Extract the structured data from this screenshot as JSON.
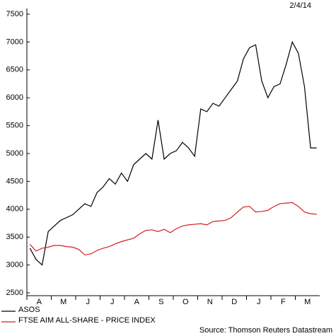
{
  "chart_data": {
    "type": "line",
    "date": "2/4/14",
    "source": "Source: Thomson Reuters Datastream",
    "categories": [
      null,
      "A",
      null,
      null,
      null,
      "M",
      null,
      null,
      null,
      "J",
      null,
      null,
      null,
      "J",
      null,
      null,
      null,
      "A",
      null,
      null,
      null,
      "S",
      null,
      null,
      null,
      "O",
      null,
      null,
      null,
      "N",
      null,
      null,
      null,
      "D",
      null,
      null,
      null,
      "J",
      null,
      null,
      null,
      "F",
      null,
      null,
      null,
      "M",
      null,
      null
    ],
    "series": [
      {
        "name": "ASOS",
        "color": "#000000",
        "values": [
          3300,
          3100,
          3000,
          3600,
          3700,
          3800,
          3850,
          3900,
          4000,
          4100,
          4050,
          4300,
          4400,
          4550,
          4450,
          4650,
          4500,
          4800,
          4900,
          5000,
          4900,
          5600,
          4900,
          5000,
          5050,
          5200,
          5100,
          4950,
          5800,
          5750,
          5900,
          5850,
          6000,
          6150,
          6300,
          6700,
          6900,
          6950,
          6300,
          6000,
          6200,
          6250,
          6600,
          7000,
          6800,
          6200,
          5100,
          5100
        ]
      },
      {
        "name": "FTSE AIM ALL-SHARE - PRICE INDEX",
        "color": "#d42020",
        "values": [
          3370,
          3250,
          3300,
          3320,
          3350,
          3350,
          3330,
          3320,
          3280,
          3180,
          3200,
          3260,
          3300,
          3330,
          3380,
          3420,
          3450,
          3480,
          3560,
          3620,
          3630,
          3600,
          3640,
          3580,
          3650,
          3700,
          3720,
          3730,
          3740,
          3720,
          3780,
          3790,
          3800,
          3850,
          3950,
          4040,
          4050,
          3950,
          3960,
          3980,
          4050,
          4100,
          4110,
          4120,
          4050,
          3950,
          3920,
          3910
        ]
      }
    ],
    "ylim": [
      2500,
      7500
    ],
    "yticks": [
      2500,
      3000,
      3500,
      4000,
      4500,
      5000,
      5500,
      6000,
      6500,
      7000,
      7500
    ]
  }
}
